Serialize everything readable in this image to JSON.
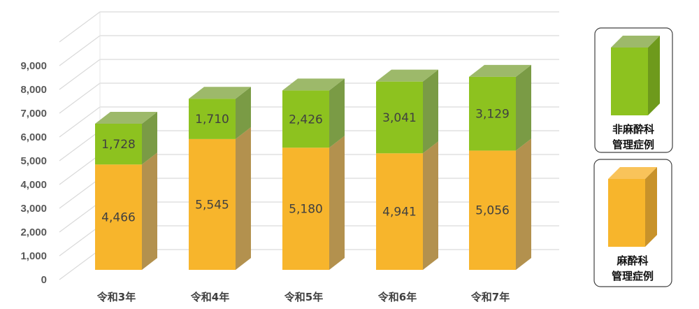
{
  "chart_data": {
    "type": "bar",
    "stacked": true,
    "style": "3d",
    "categories": [
      "令和3年",
      "令和4年",
      "令和5年",
      "令和6年",
      "令和7年"
    ],
    "series": [
      {
        "name": "麻酔科管理症例",
        "legend_lines": [
          "麻酔科",
          "管理症例"
        ],
        "values": [
          4466,
          5545,
          5180,
          4941,
          5056
        ],
        "labels": [
          "4,466",
          "5,545",
          "5,180",
          "4,941",
          "5,056"
        ],
        "color": "#F7B52C",
        "side_color": "#B3914E",
        "top_color": "#F9C35A"
      },
      {
        "name": "非麻酔科管理症例",
        "legend_lines": [
          "非麻酔科",
          "管理症例"
        ],
        "values": [
          1728,
          1710,
          2426,
          3041,
          3129
        ],
        "labels": [
          "1,728",
          "1,710",
          "2,426",
          "3,041",
          "3,129"
        ],
        "color": "#8DC21F",
        "side_color": "#7A9B45",
        "top_color": "#9DB96A"
      }
    ],
    "yticks": [
      "0",
      "1,000",
      "2,000",
      "3,000",
      "4,000",
      "5,000",
      "6,000",
      "7,000",
      "8,000",
      "9,000"
    ],
    "ylim": [
      0,
      9000
    ],
    "grid": true,
    "legend": "right",
    "title": "",
    "xlabel": "",
    "ylabel": ""
  }
}
